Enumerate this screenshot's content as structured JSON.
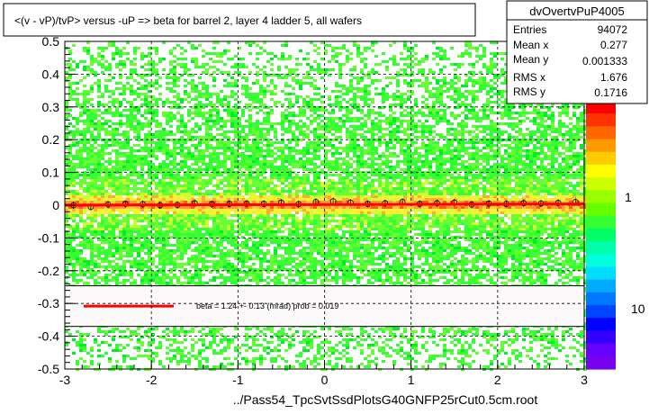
{
  "chart_data": {
    "type": "heatmap",
    "title": "<(v - vP)/tvP> versus  -uP => beta for barrel 2, layer 4 ladder 5, all wafers",
    "xlabel": "../Pass54_TpcSvtSsdPlotsG40GNFP25rCut0.5cm.root",
    "ylabel": "",
    "xlim": [
      -3,
      3
    ],
    "ylim": [
      -0.5,
      0.5
    ],
    "x_ticks": [
      "-3",
      "-2",
      "-1",
      "0",
      "1",
      "2",
      "3"
    ],
    "y_ticks": [
      "-0.5",
      "-0.4",
      "-0.3",
      "-0.2",
      "-0.1",
      "0",
      "0.1",
      "0.2",
      "0.3",
      "0.4",
      "0.5"
    ],
    "grid": true,
    "color_scale": "log",
    "colorbar_ticks": [
      "1",
      "10"
    ],
    "colors": {
      "low": "#33ff33",
      "mid": "#ffff33",
      "high": "#ff2a00",
      "fit_line": "#ff0000",
      "profile_marker": "#000000"
    },
    "stats_box": {
      "name": "dvOvertvPuP4005",
      "rows": [
        {
          "label": "Entries",
          "value": "94072"
        },
        {
          "label": "Mean x",
          "value": "0.277"
        },
        {
          "label": "Mean y",
          "value": "0.001333"
        },
        {
          "label": "RMS x",
          "value": "1.676"
        },
        {
          "label": "RMS y",
          "value": "0.1716"
        }
      ]
    },
    "fit_legend": {
      "text": "beta =     1.24 +-   0.13 (mrad) prob = 0.019"
    },
    "fit_line": {
      "x": [
        -3,
        3
      ],
      "y": [
        0.0,
        0.004
      ]
    },
    "profile": {
      "x": [
        -2.9,
        -2.7,
        -2.5,
        -2.3,
        -2.1,
        -1.9,
        -1.7,
        -1.5,
        -1.3,
        -1.1,
        -0.9,
        -0.7,
        -0.5,
        -0.3,
        -0.1,
        0.1,
        0.3,
        0.5,
        0.7,
        0.9,
        1.1,
        1.3,
        1.5,
        1.7,
        1.9,
        2.1,
        2.3,
        2.5,
        2.7,
        2.9
      ],
      "y": [
        0.0,
        -0.005,
        0.002,
        0.004,
        0.003,
        0.0,
        0.001,
        0.006,
        0.003,
        0.004,
        0.005,
        0.004,
        0.008,
        0.003,
        0.01,
        0.012,
        0.008,
        0.004,
        0.006,
        0.01,
        0.004,
        0.006,
        0.008,
        0.002,
        0.005,
        0.004,
        0.006,
        0.005,
        0.007,
        0.01
      ]
    }
  }
}
